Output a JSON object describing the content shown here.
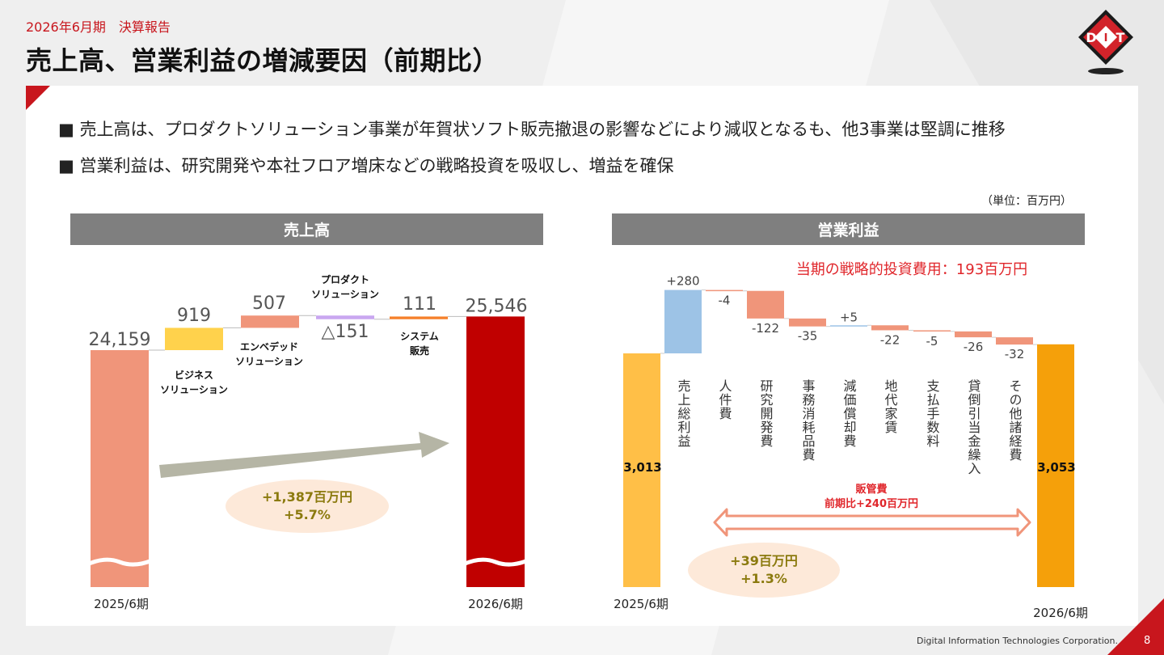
{
  "header": {
    "period": "2026年6月期　決算報告",
    "title": "売上高、営業利益の増減要因（前期比）"
  },
  "logo": {
    "letters": [
      "D",
      "I",
      "T"
    ],
    "colors": {
      "red": "#d2232a",
      "black": "#1a1a1a",
      "white": "#ffffff"
    }
  },
  "bullets": [
    "■ 売上高は、プロダクトソリューション事業が年賀状ソフト販売撤退の影響などにより減収となるも、他3事業は堅調に推移",
    "■ 営業利益は、研究開発や本社フロア増床などの戦略投資を吸収し、増益を確保"
  ],
  "unit": "（単位：百万円）",
  "sections": {
    "sales": "売上高",
    "op": "営業利益"
  },
  "footer": {
    "company": "Digital Information Technologies Corporation.",
    "page": "8"
  },
  "chart_data": [
    {
      "type": "bar",
      "subtype": "waterfall",
      "title": "売上高",
      "start": {
        "label": "2025/6期",
        "value": 24159,
        "value_label": "24,159",
        "color": "#f0957a"
      },
      "end": {
        "label": "2026/6期",
        "value": 25546,
        "value_label": "25,546",
        "color": "#c00000"
      },
      "steps": [
        {
          "name": "ビジネス\nソリューション",
          "value": 919,
          "value_label": "919",
          "color": "#ffd24c"
        },
        {
          "name": "エンベデッド\nソリューション",
          "value": 507,
          "value_label": "507",
          "color": "#f0957a"
        },
        {
          "name": "プロダクト\nソリューション",
          "value": -151,
          "value_label": "△151",
          "color": "#c9a7f0"
        },
        {
          "name": "システム\n販売",
          "value": 111,
          "value_label": "111",
          "color": "#f5802a"
        }
      ],
      "axis_break": true,
      "annotation": {
        "line1": "+1,387百万円",
        "line2": "+5.7%"
      },
      "colors": {
        "arrow": "#b5b5a5",
        "annotation_bg": "#fde9d9",
        "annotation_text": "#8b7a0e"
      }
    },
    {
      "type": "bar",
      "subtype": "waterfall",
      "title": "営業利益",
      "start": {
        "label": "2025/6期",
        "value": 3013,
        "value_label": "3,013",
        "color": "#ffbf47"
      },
      "end": {
        "label": "2026/6期",
        "value": 3053,
        "value_label": "3,053",
        "color": "#f5a00a"
      },
      "steps": [
        {
          "name": "売上総利益",
          "value": 280,
          "value_label": "+280",
          "color": "#9dc3e6"
        },
        {
          "name": "人件費",
          "value": -4,
          "value_label": "-4",
          "color": "#f0957a"
        },
        {
          "name": "研究開発費",
          "value": -122,
          "value_label": "-122",
          "color": "#f0957a"
        },
        {
          "name": "事務消耗品費",
          "value": -35,
          "value_label": "-35",
          "color": "#f0957a"
        },
        {
          "name": "減価償却費",
          "value": 5,
          "value_label": "+5",
          "color": "#9dc3e6"
        },
        {
          "name": "地代家賃",
          "value": -22,
          "value_label": "-22",
          "color": "#f0957a"
        },
        {
          "name": "支払手数料",
          "value": -5,
          "value_label": "-5",
          "color": "#f0957a"
        },
        {
          "name": "貸倒引当金繰入",
          "value": -26,
          "value_label": "-26",
          "color": "#f0957a"
        },
        {
          "name": "その他諸経費",
          "value": -32,
          "value_label": "-32",
          "color": "#f0957a"
        }
      ],
      "strategic_note": "当期の戦略的投資費用：193百万円",
      "sga_note": {
        "line1": "販管費",
        "line2": "前期比+240百万円"
      },
      "annotation": {
        "line1": "+39百万円",
        "line2": "+1.3%"
      },
      "colors": {
        "note_red": "#e0262b",
        "arrow_stroke": "#f0957a",
        "annotation_bg": "#fde9d9",
        "annotation_text": "#8b7a0e"
      }
    }
  ]
}
